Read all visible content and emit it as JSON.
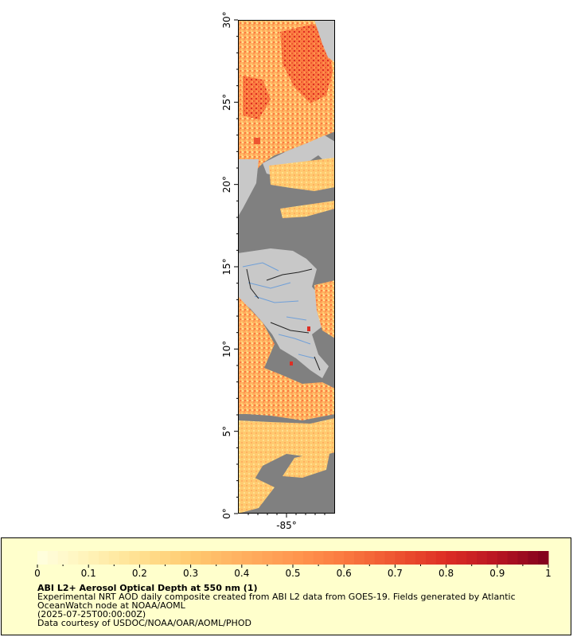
{
  "map": {
    "y_axis_labels": [
      "0°",
      "5°",
      "10°",
      "15°",
      "20°",
      "25°",
      "30°"
    ],
    "x_axis_labels": [
      "-85°"
    ],
    "colors": {
      "land": "#c8c8c8",
      "no_data": "#808080",
      "coastline": "#6a6a6a",
      "rivers": "#6f9fd8",
      "borders": "#222222"
    }
  },
  "colorbar": {
    "tick_labels": [
      "0",
      "0.1",
      "0.2",
      "0.3",
      "0.4",
      "0.5",
      "0.6",
      "0.7",
      "0.8",
      "0.9",
      "1"
    ],
    "stops": [
      "#ffffe0",
      "#fff3b8",
      "#ffe090",
      "#ffca70",
      "#ffb060",
      "#ff9850",
      "#fa7a40",
      "#ee5530",
      "#dd2e24",
      "#b81522",
      "#7f001c"
    ]
  },
  "legend": {
    "title": "ABI L2+ Aerosol Optical Depth at 550 nm (1)",
    "line1": "Experimental NRT AOD daily composite created from ABI L2 data from GOES-19. Fields generated by Atlantic",
    "line2": "OceanWatch node at NOAA/AOML",
    "line3": "(2025-07-25T00:00:00Z)",
    "line4": "Data courtesy of USDOC/NOAA/OAR/AOML/PHOD"
  }
}
